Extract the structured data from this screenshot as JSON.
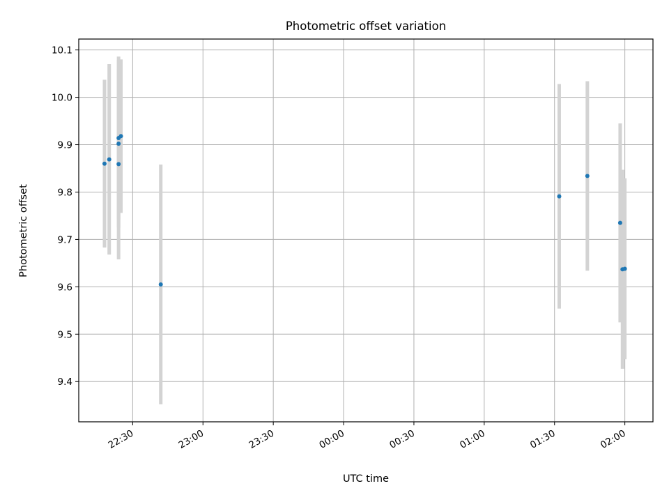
{
  "chart_data": {
    "type": "scatter",
    "title": "Photometric offset variation",
    "xlabel": "UTC time",
    "ylabel": "Photometric offset",
    "grid": true,
    "x_tick_labels": [
      "22:30",
      "23:00",
      "23:30",
      "00:00",
      "00:30",
      "01:00",
      "01:30",
      "02:00"
    ],
    "y_tick_labels": [
      "9.4",
      "9.5",
      "9.6",
      "9.7",
      "9.8",
      "9.9",
      "10.0",
      "10.1"
    ],
    "y_ticks": [
      9.4,
      9.5,
      9.6,
      9.7,
      9.8,
      9.9,
      10.0,
      10.1
    ],
    "ylim": [
      9.315,
      10.123
    ],
    "xlim": [
      "22:07",
      "02:12"
    ],
    "x_ticks": [
      "22:30",
      "23:00",
      "23:30",
      "00:00",
      "00:30",
      "01:00",
      "01:30",
      "02:00"
    ],
    "marker_color": "#1f77b4",
    "errorbar_color": "#d3d3d3",
    "points": [
      {
        "x": "22:18",
        "y": 9.86,
        "yerr": 0.177
      },
      {
        "x": "22:20",
        "y": 9.869,
        "yerr": 0.201
      },
      {
        "x": "22:24",
        "y": 9.859,
        "yerr": 0.201
      },
      {
        "x": "22:24",
        "y": 9.902,
        "yerr": 0.177
      },
      {
        "x": "22:24",
        "y": 9.914,
        "yerr": 0.172
      },
      {
        "x": "22:25",
        "y": 9.918,
        "yerr": 0.162
      },
      {
        "x": "22:42",
        "y": 9.605,
        "yerr": 0.253
      },
      {
        "x": "01:32",
        "y": 9.791,
        "yerr": 0.237
      },
      {
        "x": "01:44",
        "y": 9.834,
        "yerr": 0.2
      },
      {
        "x": "01:58",
        "y": 9.735,
        "yerr": 0.21
      },
      {
        "x": "01:59",
        "y": 9.637,
        "yerr": 0.21
      },
      {
        "x": "02:00",
        "y": 9.638,
        "yerr": 0.191
      }
    ]
  }
}
